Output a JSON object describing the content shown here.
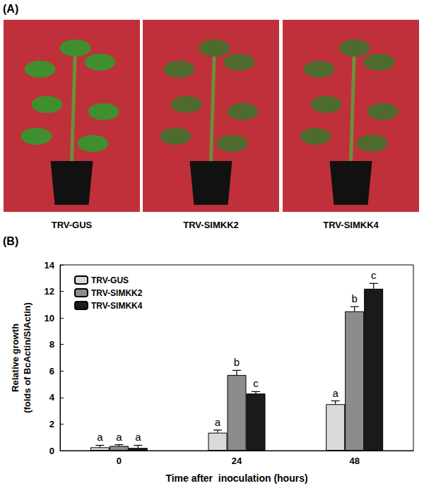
{
  "figure": {
    "panel_a": {
      "label": "(A)",
      "captions": [
        "TRV-GUS",
        "TRV-SlMKK2",
        "TRV-SlMKK4"
      ]
    },
    "panel_b_label": "(B)"
  },
  "chart_data": {
    "type": "bar",
    "categories": [
      "0",
      "24",
      "48"
    ],
    "x_label": "Time after  inoculation (hours)",
    "y_label": [
      "Relative growth",
      "(folds of BcActin/SlActin)"
    ],
    "ylim": [
      0,
      14
    ],
    "yticks": [
      0,
      2,
      4,
      6,
      8,
      10,
      12,
      14
    ],
    "grid": false,
    "legend": "upper left",
    "series": [
      {
        "name": "TRV-GUS",
        "color": "#d9d9d9",
        "values": [
          0.25,
          1.35,
          3.5
        ],
        "errors": [
          0.15,
          0.2,
          0.25
        ],
        "letters": [
          "a",
          "a",
          "a"
        ]
      },
      {
        "name": "TRV-SlMKK2",
        "color": "#8c8c8c",
        "values": [
          0.35,
          5.7,
          10.5
        ],
        "errors": [
          0.1,
          0.35,
          0.35
        ],
        "letters": [
          "a",
          "b",
          "b"
        ]
      },
      {
        "name": "TRV-SlMKK4",
        "color": "#1a1a1a",
        "values": [
          0.2,
          4.3,
          12.2
        ],
        "errors": [
          0.2,
          0.15,
          0.4
        ],
        "letters": [
          "a",
          "c",
          "c"
        ]
      }
    ]
  }
}
